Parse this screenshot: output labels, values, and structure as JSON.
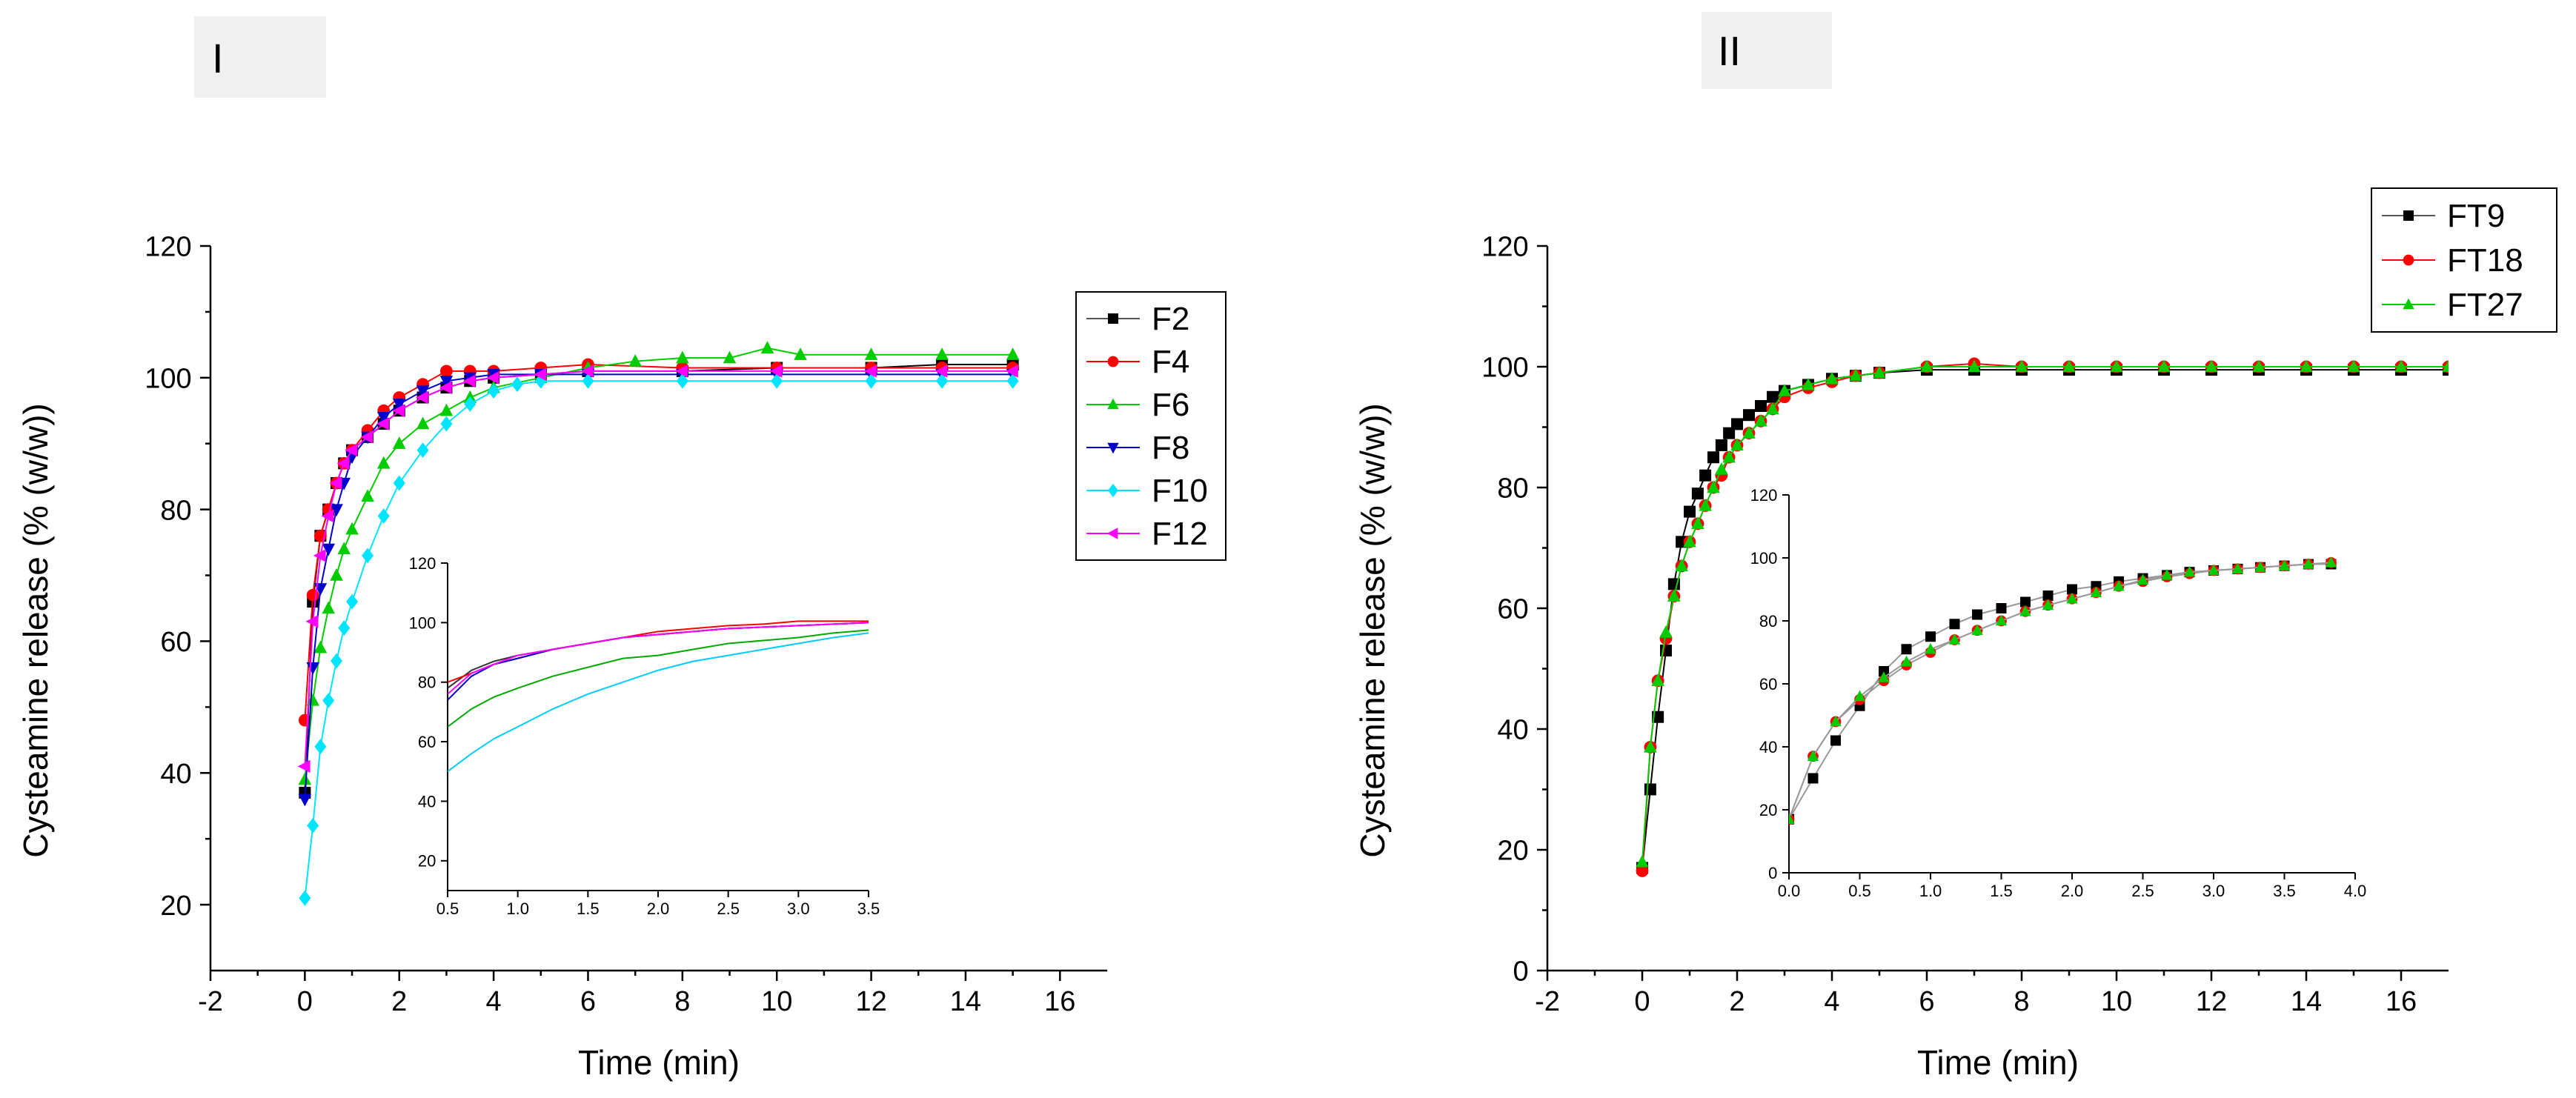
{
  "panels": {
    "I": {
      "label": "I"
    },
    "II": {
      "label": "II"
    }
  },
  "chart_data": [
    {
      "id": "panel-I",
      "type": "line",
      "title": "I",
      "xlabel": "Time (min)",
      "ylabel": "Cysteamine release (% (w/w))",
      "xlim": [
        -2,
        17
      ],
      "ylim": [
        10,
        120
      ],
      "xticks": [
        -2,
        0,
        2,
        4,
        6,
        8,
        10,
        12,
        14,
        16
      ],
      "yticks": [
        20,
        40,
        60,
        80,
        100,
        120
      ],
      "legend_position": "top-right",
      "series": [
        {
          "name": "F2",
          "color": "#000000",
          "marker": "square",
          "x": [
            0,
            0.17,
            0.33,
            0.5,
            0.67,
            0.83,
            1,
            1.33,
            1.67,
            2,
            2.5,
            3,
            3.5,
            4,
            5,
            6,
            8,
            10,
            12,
            13.5,
            15
          ],
          "y": [
            37,
            66,
            76,
            80,
            84,
            87,
            89,
            91,
            93,
            95,
            97,
            98.5,
            99.5,
            100,
            100.5,
            101,
            101,
            101.5,
            101.5,
            102,
            102
          ]
        },
        {
          "name": "F4",
          "color": "#ff0000",
          "marker": "circle",
          "x": [
            0,
            0.17,
            0.33,
            0.5,
            0.67,
            0.83,
            1,
            1.33,
            1.67,
            2,
            2.5,
            3,
            3.5,
            4,
            5,
            6,
            8,
            10,
            12,
            13.5,
            15
          ],
          "y": [
            48,
            67,
            76,
            80,
            84,
            87,
            89,
            92,
            95,
            97,
            99,
            101,
            101,
            101,
            101.5,
            102,
            101.5,
            101.5,
            101.5,
            101.5,
            101.5
          ]
        },
        {
          "name": "F6",
          "color": "#00cc00",
          "marker": "triangle-up",
          "x": [
            0,
            0.17,
            0.33,
            0.5,
            0.67,
            0.83,
            1,
            1.33,
            1.67,
            2,
            2.5,
            3,
            3.5,
            4,
            5,
            6,
            7,
            8,
            9,
            9.8,
            10.5,
            12,
            13.5,
            15
          ],
          "y": [
            39,
            51,
            59,
            65,
            70,
            74,
            77,
            82,
            87,
            90,
            93,
            95,
            97,
            98.5,
            100,
            101.5,
            102.5,
            103,
            103,
            104.5,
            103.5,
            103.5,
            103.5,
            103.5
          ]
        },
        {
          "name": "F8",
          "color": "#0000cc",
          "marker": "triangle-down",
          "x": [
            0,
            0.17,
            0.33,
            0.5,
            0.67,
            0.83,
            1,
            1.33,
            1.67,
            2,
            2.5,
            3,
            3.5,
            4,
            5,
            6,
            8,
            10,
            12,
            13.5,
            15
          ],
          "y": [
            36,
            56,
            68,
            74,
            80,
            84,
            88,
            91,
            94,
            96,
            98,
            99.5,
            100,
            100.5,
            100.5,
            100.5,
            100.5,
            100.5,
            100.5,
            100.5,
            100.5
          ]
        },
        {
          "name": "F10",
          "color": "#00e5ff",
          "marker": "diamond",
          "x": [
            0,
            0.17,
            0.33,
            0.5,
            0.67,
            0.83,
            1,
            1.33,
            1.67,
            2,
            2.5,
            3,
            3.5,
            4,
            4.5,
            5,
            6,
            8,
            10,
            12,
            13.5,
            15
          ],
          "y": [
            21,
            32,
            44,
            51,
            57,
            62,
            66,
            73,
            79,
            84,
            89,
            93,
            96,
            98,
            99,
            99.5,
            99.5,
            99.5,
            99.5,
            99.5,
            99.5,
            99.5
          ]
        },
        {
          "name": "F12",
          "color": "#ff00ff",
          "marker": "triangle-left",
          "x": [
            0,
            0.17,
            0.33,
            0.5,
            0.67,
            0.83,
            1,
            1.33,
            1.67,
            2,
            2.5,
            3,
            3.5,
            4,
            5,
            6,
            8,
            10,
            12,
            13.5,
            15
          ],
          "y": [
            41,
            63,
            73,
            79,
            84,
            87,
            89,
            91,
            93,
            95,
            97,
            98.5,
            99.5,
            100,
            100.5,
            101,
            101,
            101,
            101,
            101,
            101
          ]
        }
      ],
      "inset": {
        "xlim": [
          0.5,
          3.5
        ],
        "ylim": [
          10,
          120
        ],
        "xticks": [
          0.5,
          1.0,
          1.5,
          2.0,
          2.5,
          3.0,
          3.5
        ],
        "xtick_labels": [
          "0.5",
          "1.0",
          "1.5",
          "2.0",
          "2.5",
          "3.0",
          "3.5"
        ],
        "yticks": [
          20,
          40,
          60,
          80,
          100,
          120
        ],
        "series": [
          {
            "name": "F2",
            "color": "#333333",
            "x": [
              0.5,
              0.67,
              0.83,
              1,
              1.25,
              1.5,
              1.75,
              2,
              2.25,
              2.5,
              2.75,
              3,
              3.25,
              3.5
            ],
            "y": [
              78,
              84,
              87,
              89,
              91,
              93,
              95,
              96,
              97,
              98,
              98.5,
              99,
              99.5,
              100
            ]
          },
          {
            "name": "F4",
            "color": "#ff0000",
            "x": [
              0.5,
              0.67,
              0.83,
              1,
              1.25,
              1.5,
              1.75,
              2,
              2.25,
              2.5,
              2.75,
              3,
              3.25,
              3.5
            ],
            "y": [
              80,
              83,
              86,
              88,
              91,
              93,
              95,
              97,
              98,
              99,
              99.5,
              100.5,
              100.5,
              100.5
            ]
          },
          {
            "name": "F6",
            "color": "#00aa00",
            "x": [
              0.5,
              0.67,
              0.83,
              1,
              1.25,
              1.5,
              1.75,
              2,
              2.25,
              2.5,
              2.75,
              3,
              3.25,
              3.5
            ],
            "y": [
              65,
              71,
              75,
              78,
              82,
              85,
              88,
              89,
              91,
              93,
              94,
              95,
              96.5,
              97.5
            ]
          },
          {
            "name": "F8",
            "color": "#0000cc",
            "x": [
              0.5,
              0.67,
              0.83,
              1,
              1.25,
              1.5,
              1.75,
              2,
              2.25,
              2.5,
              2.75,
              3,
              3.25,
              3.5
            ],
            "y": [
              74,
              82,
              86,
              88,
              91,
              93,
              95,
              96,
              97,
              98,
              98.5,
              99,
              99.5,
              100
            ]
          },
          {
            "name": "F10",
            "color": "#00ccff",
            "x": [
              0.5,
              0.67,
              0.83,
              1,
              1.25,
              1.5,
              1.75,
              2,
              2.25,
              2.5,
              2.75,
              3,
              3.25,
              3.5
            ],
            "y": [
              50,
              56,
              61,
              65,
              71,
              76,
              80,
              84,
              87,
              89,
              91,
              93,
              95,
              96.5
            ]
          },
          {
            "name": "F12",
            "color": "#ff00ff",
            "x": [
              0.5,
              0.67,
              0.83,
              1,
              1.25,
              1.5,
              1.75,
              2,
              2.25,
              2.5,
              2.75,
              3,
              3.25,
              3.5
            ],
            "y": [
              76,
              83,
              86,
              89,
              91,
              93,
              95,
              96,
              97,
              98,
              98.5,
              99,
              99.5,
              100
            ]
          }
        ]
      }
    },
    {
      "id": "panel-II",
      "type": "line",
      "title": "II",
      "xlabel": "Time (min)",
      "ylabel": "Cysteamine release (% (w/w))",
      "xlim": [
        -2,
        17
      ],
      "ylim": [
        0,
        120
      ],
      "xticks": [
        -2,
        0,
        2,
        4,
        6,
        8,
        10,
        12,
        14,
        16
      ],
      "yticks": [
        0,
        20,
        40,
        60,
        80,
        100,
        120
      ],
      "legend_position": "top-right",
      "series": [
        {
          "name": "FT9",
          "color": "#000000",
          "marker": "square",
          "x": [
            0,
            0.17,
            0.33,
            0.5,
            0.67,
            0.83,
            1,
            1.17,
            1.33,
            1.5,
            1.67,
            1.83,
            2,
            2.25,
            2.5,
            2.75,
            3,
            3.5,
            4,
            4.5,
            5,
            6,
            7,
            8,
            9,
            10,
            11,
            12,
            13,
            14,
            15,
            16,
            17
          ],
          "y": [
            17,
            30,
            42,
            53,
            64,
            71,
            76,
            79,
            82,
            85,
            87,
            89,
            90.5,
            92,
            93.5,
            95,
            96,
            97,
            98,
            98.5,
            99,
            99.5,
            99.5,
            99.5,
            99.5,
            99.5,
            99.5,
            99.5,
            99.5,
            99.5,
            99.5,
            99.5,
            99.5
          ]
        },
        {
          "name": "FT18",
          "color": "#ff0000",
          "marker": "circle",
          "x": [
            0,
            0.17,
            0.33,
            0.5,
            0.67,
            0.83,
            1,
            1.17,
            1.33,
            1.5,
            1.67,
            1.83,
            2,
            2.25,
            2.5,
            2.75,
            3,
            3.5,
            4,
            4.5,
            5,
            6,
            7,
            8,
            9,
            10,
            11,
            12,
            13,
            14,
            15,
            16,
            17
          ],
          "y": [
            16.5,
            37,
            48,
            55,
            62,
            67,
            71,
            74,
            77,
            80,
            82,
            85,
            87,
            89,
            91,
            93,
            95,
            96.5,
            97.5,
            98.5,
            99,
            100,
            100.5,
            100,
            100,
            100,
            100,
            100,
            100,
            100,
            100,
            100,
            100
          ]
        },
        {
          "name": "FT27",
          "color": "#00cc00",
          "marker": "triangle-up",
          "x": [
            0,
            0.17,
            0.33,
            0.5,
            0.67,
            0.83,
            1,
            1.17,
            1.33,
            1.5,
            1.67,
            1.83,
            2,
            2.25,
            2.5,
            2.75,
            3,
            3.5,
            4,
            4.5,
            5,
            6,
            7,
            8,
            9,
            10,
            11,
            12,
            13,
            14,
            15,
            16,
            17
          ],
          "y": [
            18,
            37,
            48,
            56,
            62,
            67,
            71,
            74,
            77,
            80,
            83,
            85,
            87,
            89,
            91,
            93,
            96,
            97,
            98,
            98.5,
            99,
            100,
            100,
            100,
            100,
            100,
            100,
            100,
            100,
            100,
            100,
            100,
            100
          ]
        }
      ],
      "inset": {
        "xlim": [
          0,
          4
        ],
        "ylim": [
          0,
          120
        ],
        "xticks": [
          0,
          0.5,
          1,
          1.5,
          2,
          2.5,
          3,
          3.5,
          4
        ],
        "xtick_labels": [
          "0.0",
          "0.5",
          "1.0",
          "1.5",
          "2.0",
          "2.5",
          "3.0",
          "3.5",
          "4.0"
        ],
        "yticks": [
          0,
          20,
          40,
          60,
          80,
          100,
          120
        ],
        "series": [
          {
            "name": "FT9",
            "color": "#000000",
            "marker": "square",
            "x": [
              0,
              0.17,
              0.33,
              0.5,
              0.67,
              0.83,
              1,
              1.17,
              1.33,
              1.5,
              1.67,
              1.83,
              2,
              2.17,
              2.33,
              2.5,
              2.67,
              2.83,
              3,
              3.17,
              3.33,
              3.5,
              3.67,
              3.83
            ],
            "y": [
              17,
              30,
              42,
              53,
              64,
              71,
              75,
              79,
              82,
              84,
              86,
              88,
              90,
              91,
              92.5,
              93.5,
              94.5,
              95.5,
              96,
              96.5,
              97,
              97.5,
              98,
              98
            ]
          },
          {
            "name": "FT18",
            "color": "#ff0000",
            "marker": "circle",
            "x": [
              0,
              0.17,
              0.33,
              0.5,
              0.67,
              0.83,
              1,
              1.17,
              1.33,
              1.5,
              1.67,
              1.83,
              2,
              2.17,
              2.33,
              2.5,
              2.67,
              2.83,
              3,
              3.17,
              3.33,
              3.5,
              3.67,
              3.83
            ],
            "y": [
              17,
              37,
              48,
              55,
              61,
              66,
              70,
              74,
              77,
              80,
              83,
              85,
              87,
              89,
              91,
              92.5,
              94,
              95,
              96,
              96.5,
              97,
              97.5,
              98,
              98.5
            ]
          },
          {
            "name": "FT27",
            "color": "#00cc00",
            "marker": "triangle-up",
            "x": [
              0,
              0.17,
              0.33,
              0.5,
              0.67,
              0.83,
              1,
              1.17,
              1.33,
              1.5,
              1.67,
              1.83,
              2,
              2.17,
              2.33,
              2.5,
              2.67,
              2.83,
              3,
              3.17,
              3.33,
              3.5,
              3.67,
              3.83
            ],
            "y": [
              17,
              37,
              48,
              56,
              62,
              67,
              71,
              74,
              77,
              80,
              83,
              85,
              87,
              89,
              91,
              93,
              94.5,
              95.5,
              96,
              96.5,
              97,
              97.5,
              98,
              98.5
            ]
          }
        ]
      }
    }
  ]
}
